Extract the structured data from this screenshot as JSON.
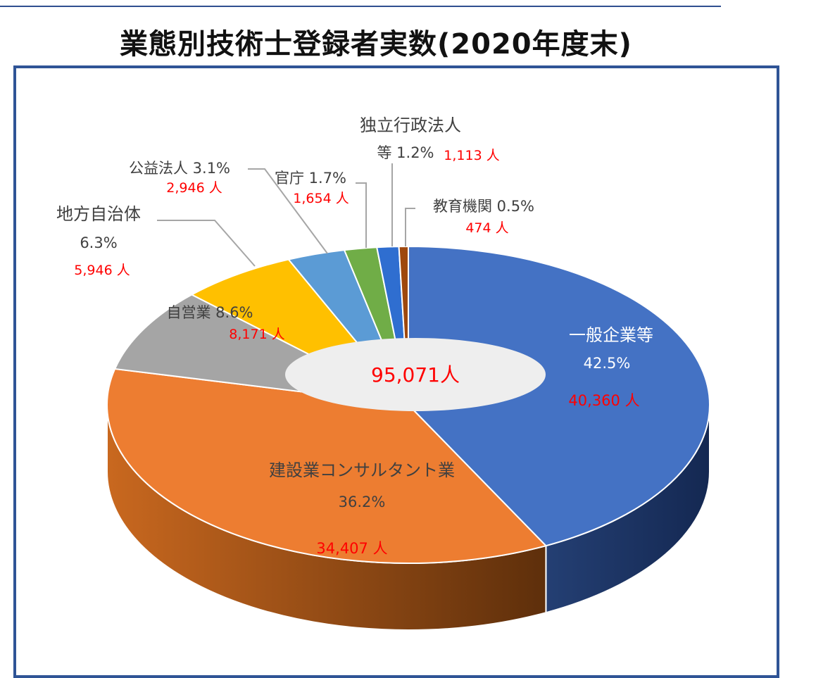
{
  "title": "業態別技術士登録者実数(2020年度末)",
  "chart_data": {
    "type": "pie",
    "style": "3d-doughnut",
    "center_total": "95,071人",
    "slices": [
      {
        "name": "一般企業等",
        "percent": "42.5%",
        "count": "40,360 人",
        "value": 40360,
        "color": "#4472c4",
        "side_color": "#1f3864"
      },
      {
        "name": "建設業コンサルタント業",
        "percent": "36.2%",
        "count": "34,407 人",
        "value": 34407,
        "color": "#ed7d31",
        "side_color": "#8f4a17"
      },
      {
        "name": "自営業",
        "percent": "8.6%",
        "count": "8,171 人",
        "value": 8171,
        "color": "#a5a5a5",
        "side_color": "#5e5e5e"
      },
      {
        "name": "地方自治体",
        "percent": "6.3%",
        "count": "5,946 人",
        "value": 5946,
        "color": "#ffc000",
        "side_color": "#997300"
      },
      {
        "name": "公益法人",
        "percent": "3.1%",
        "count": "2,946 人",
        "value": 2946,
        "color": "#5b9bd5",
        "side_color": "#2e5f8f"
      },
      {
        "name": "官庁",
        "percent": "1.7%",
        "count": "1,654 人",
        "value": 1654,
        "color": "#70ad47",
        "side_color": "#3d6b22"
      },
      {
        "name": "独立行政法人等",
        "percent": "1.2%",
        "count": "1,113 人",
        "value": 1113,
        "color": "#2f6ed0",
        "side_color": "#1a3f7a"
      },
      {
        "name": "教育機関",
        "percent": "0.5%",
        "count": "474 人",
        "value": 474,
        "color": "#9e480e",
        "side_color": "#5a2806"
      }
    ]
  },
  "labels": {
    "s0_name": "一般企業等",
    "s1_name": "建設業コンサルタント業",
    "s2_name": "自営業 8.6%",
    "s3_name_a": "地方自治体",
    "s4_name": "公益法人 3.1%",
    "s5_name": "官庁 1.7%",
    "s6_name_a": "独立行政法人",
    "s6_name_b": "等 1.2%",
    "s7_name": "教育機関 0.5%"
  },
  "colors": {
    "label_count": "#ff0000",
    "label_text": "#404040",
    "frame": "#2f5496",
    "hole": "#eeeeee"
  }
}
